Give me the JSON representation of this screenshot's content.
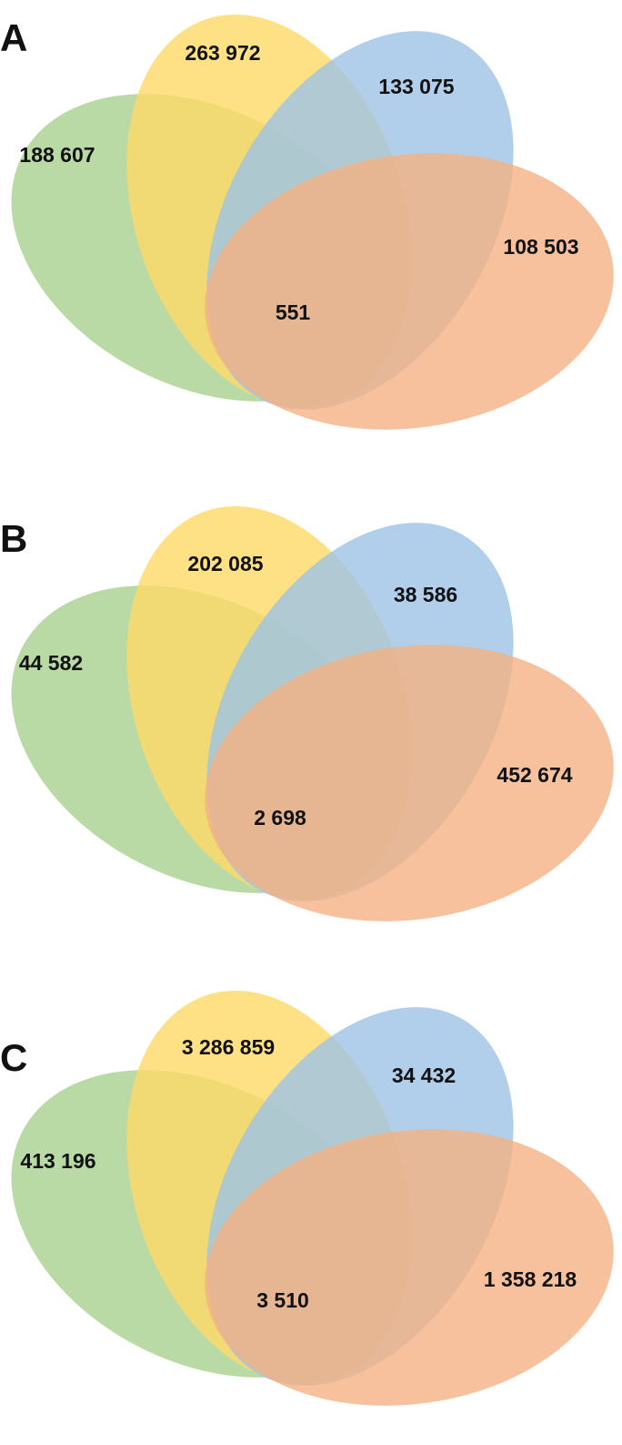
{
  "panels": [
    {
      "label": "A",
      "regions": [
        "188 607",
        "263 972",
        "133 075",
        "108 503",
        "551"
      ]
    },
    {
      "label": "B",
      "regions": [
        "44 582",
        "202 085",
        "38 586",
        "452 674",
        "2 698"
      ]
    },
    {
      "label": "C",
      "regions": [
        "413 196",
        "3 286 859",
        "34 432",
        "1 358 218",
        "3 510"
      ]
    }
  ]
}
